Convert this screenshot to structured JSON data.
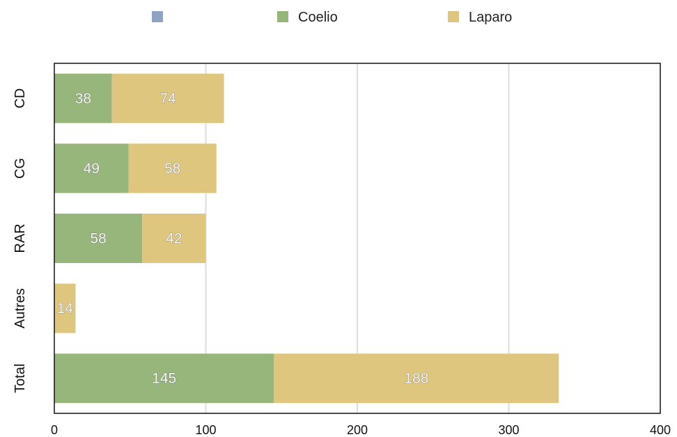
{
  "chart_data": {
    "type": "bar",
    "orientation": "horizontal",
    "stacked": true,
    "categories": [
      "CD",
      "CG",
      "RAR",
      "Autres",
      "Total"
    ],
    "series": [
      {
        "name": "",
        "color": "#8fa3c2",
        "values": [
          0,
          0,
          0,
          0,
          0
        ]
      },
      {
        "name": "Coelio",
        "color": "#97b67b",
        "values": [
          38,
          49,
          58,
          0,
          145
        ]
      },
      {
        "name": "Laparo",
        "color": "#dfc67f",
        "values": [
          74,
          58,
          42,
          14,
          188
        ]
      }
    ],
    "xlim": [
      0,
      400
    ],
    "xticks": [
      0,
      100,
      200,
      300,
      400
    ],
    "grid": "vertical",
    "legend_position": "top",
    "title": "",
    "xlabel": "",
    "ylabel": ""
  }
}
